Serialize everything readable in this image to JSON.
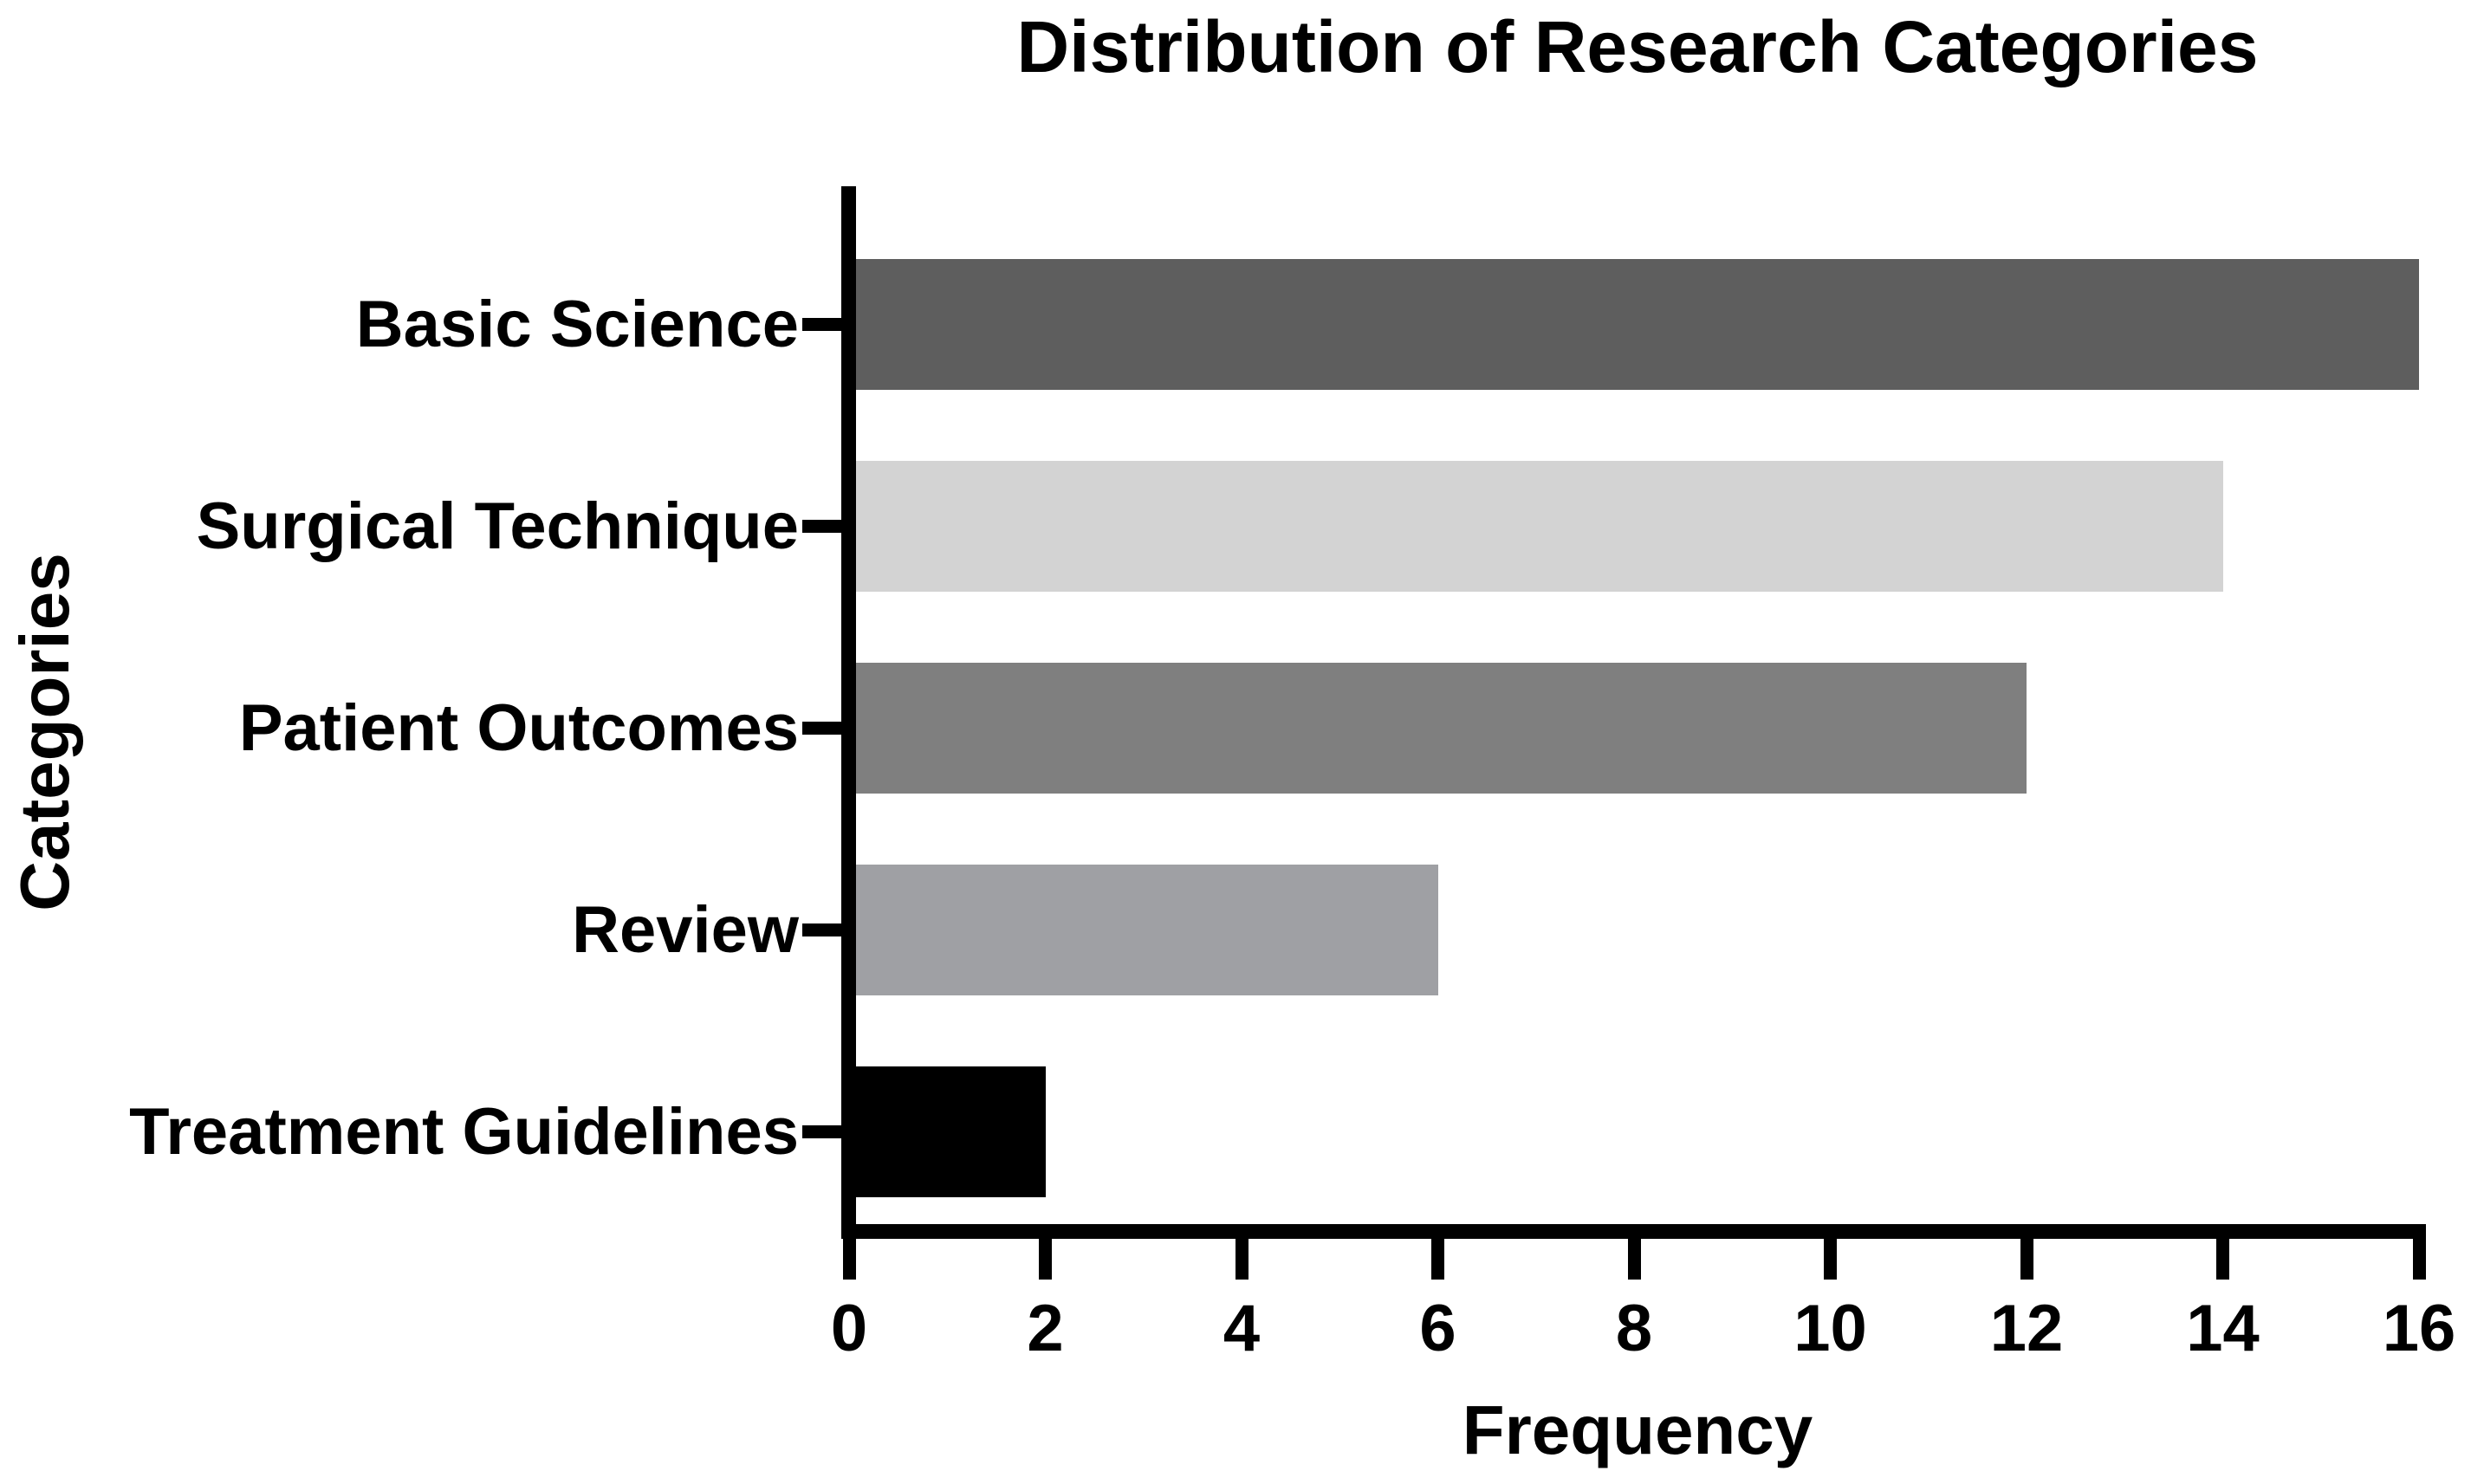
{
  "chart_data": {
    "type": "bar",
    "orientation": "horizontal",
    "title": "Distribution of Research Categories",
    "xlabel": "Frequency",
    "ylabel": "Categories",
    "categories": [
      "Basic Science",
      "Surgical Technique",
      "Patient Outcomes",
      "Review",
      "Treatment Guidelines"
    ],
    "values": [
      16,
      14,
      12,
      6,
      2
    ],
    "bar_colors": [
      "#5E5E5E",
      "#D3D3D3",
      "#7F7F7F",
      "#9FA0A4",
      "#000000"
    ],
    "xlim": [
      0,
      16
    ],
    "x_ticks": [
      0,
      2,
      4,
      6,
      8,
      10,
      12,
      14,
      16
    ],
    "grid": false,
    "legend": false,
    "axis_color": "#000000",
    "text_color": "#000000",
    "background_color": "#FFFFFF"
  }
}
